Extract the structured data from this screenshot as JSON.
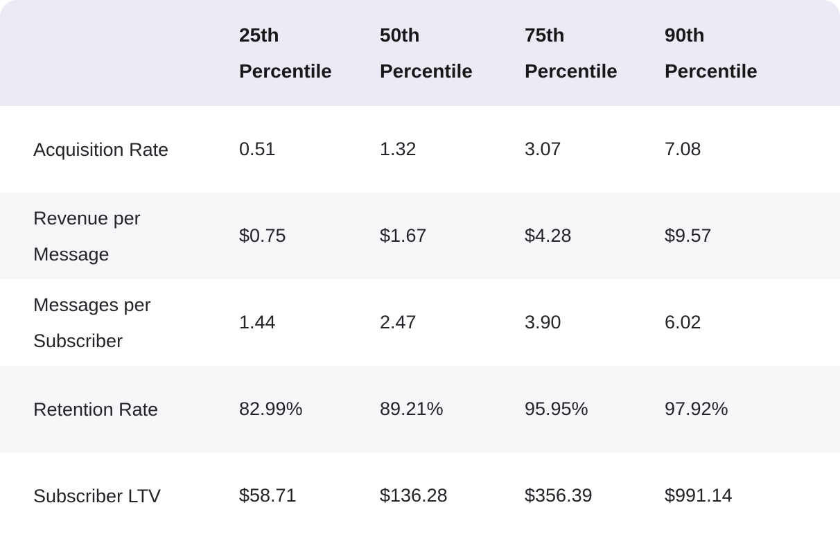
{
  "colors": {
    "header_bg": "#ECEBF5",
    "row_bg": "#FFFFFF",
    "row_alt_bg": "#F7F7FA",
    "header_text": "#18181B",
    "body_text": "#232329"
  },
  "table": {
    "corner_label": "",
    "columns": [
      "25th Percentile",
      "50th Percentile",
      "75th Percentile",
      "90th Percentile"
    ],
    "rows": [
      {
        "label": "Acquisition Rate",
        "values": [
          "0.51",
          "1.32",
          "3.07",
          "7.08"
        ]
      },
      {
        "label": "Revenue per Message",
        "values": [
          "$0.75",
          "$1.67",
          "$4.28",
          "$9.57"
        ]
      },
      {
        "label": "Messages per Subscriber",
        "values": [
          "1.44",
          "2.47",
          "3.90",
          "6.02"
        ]
      },
      {
        "label": "Retention Rate",
        "values": [
          "82.99%",
          "89.21%",
          "95.95%",
          "97.92%"
        ]
      },
      {
        "label": "Subscriber LTV",
        "values": [
          "$58.71",
          "$136.28",
          "$356.39",
          "$991.14"
        ]
      }
    ]
  },
  "chart_data": {
    "type": "table",
    "columns": [
      "",
      "25th Percentile",
      "50th Percentile",
      "75th Percentile",
      "90th Percentile"
    ],
    "rows": [
      [
        "Acquisition Rate",
        "0.51",
        "1.32",
        "3.07",
        "7.08"
      ],
      [
        "Revenue per Message",
        "$0.75",
        "$1.67",
        "$4.28",
        "$9.57"
      ],
      [
        "Messages per Subscriber",
        "1.44",
        "2.47",
        "3.90",
        "6.02"
      ],
      [
        "Retention Rate",
        "82.99%",
        "89.21%",
        "95.95%",
        "97.92%"
      ],
      [
        "Subscriber LTV",
        "$58.71",
        "$136.28",
        "$356.39",
        "$991.14"
      ]
    ]
  }
}
